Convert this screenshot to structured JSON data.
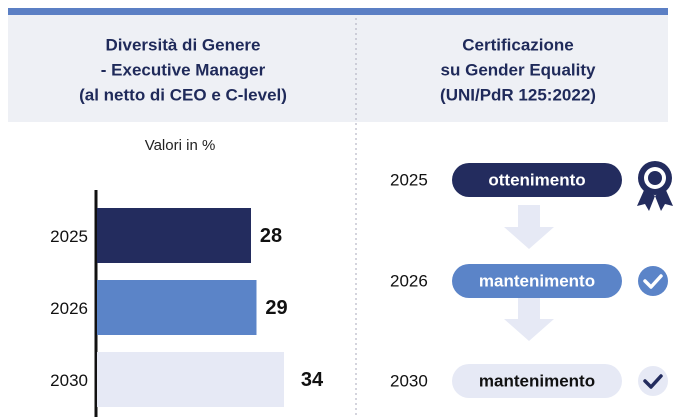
{
  "chart_data": {
    "type": "bar",
    "orientation": "horizontal",
    "title": [
      "Diversità di Genere",
      "- Executive Manager",
      "(al netto di CEO e C-level)"
    ],
    "subtitle": "Valori in %",
    "categories": [
      "2025",
      "2026",
      "2030"
    ],
    "values": [
      28,
      29,
      34
    ],
    "colors": [
      "#232c5e",
      "#5b84c8",
      "#e6e9f5"
    ],
    "xlim": [
      0,
      40
    ]
  },
  "certification": {
    "title": [
      "Certificazione",
      "su Gender Equality",
      "(UNI/PdR 125:2022)"
    ],
    "steps": [
      {
        "year": "2025",
        "label": "ottenimento"
      },
      {
        "year": "2026",
        "label": "mantenimento"
      },
      {
        "year": "2030",
        "label": "mantenimento"
      }
    ]
  }
}
